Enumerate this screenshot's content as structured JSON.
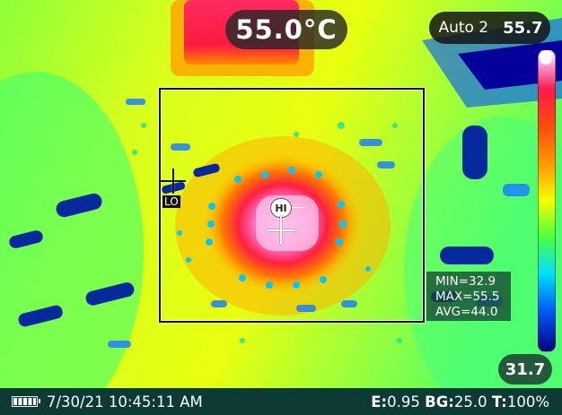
{
  "overlay": {
    "center_temperature": "55.0°C",
    "palette_mode": "Auto 2",
    "scale_max": "55.7",
    "scale_min": "31.7",
    "lo_label": "LO",
    "hi_label": "HI"
  },
  "stats": {
    "min": "MIN=32.9",
    "max": "MAX=55.5",
    "avg": "AVG=44.0"
  },
  "status_bar": {
    "datetime": "7/30/21 10:45:11 AM",
    "emissivity_label": "E:",
    "emissivity_value": "0.95",
    "background_label": "BG:",
    "background_value": "25.0",
    "transmission_label": "T:",
    "transmission_value": "100%"
  },
  "icons": {
    "battery": "battery-icon",
    "crosshair_lo": "crosshair-icon",
    "crosshair_hi": "crosshair-icon"
  }
}
